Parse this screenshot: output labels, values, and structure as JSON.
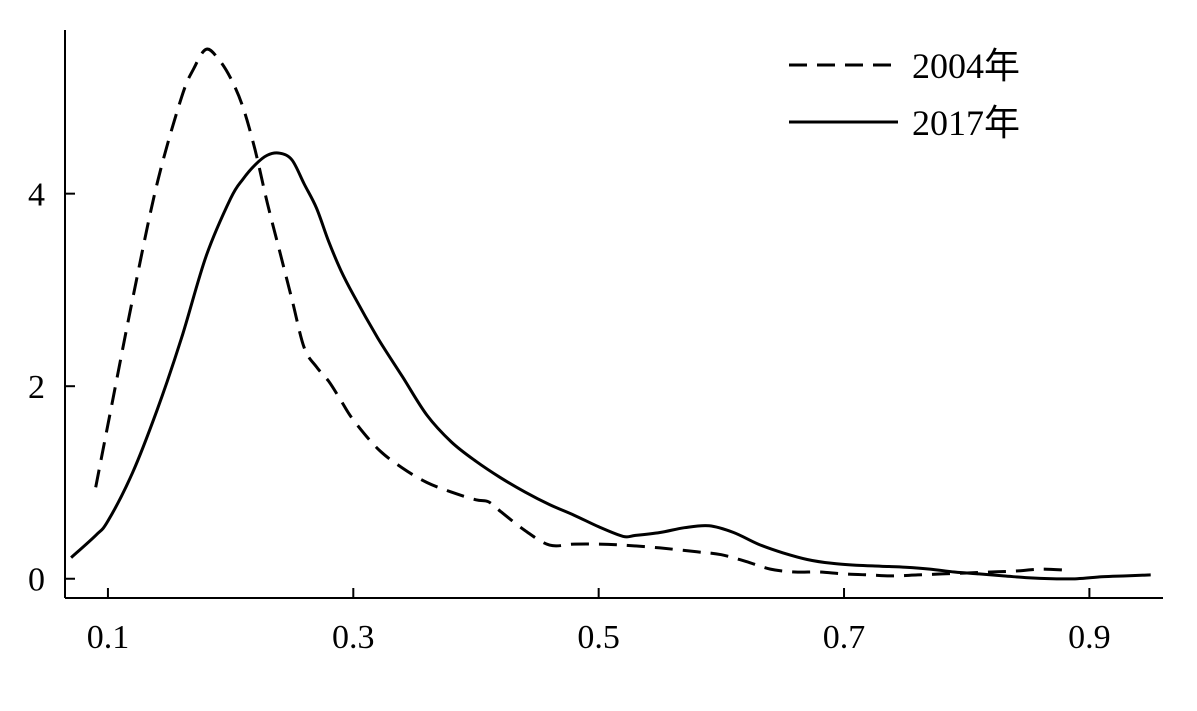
{
  "chart_data": {
    "type": "line",
    "title": "",
    "xlabel": "",
    "ylabel": "",
    "xlim": [
      0.065,
      0.96
    ],
    "ylim": [
      -0.2,
      5.7
    ],
    "x_ticks": [
      0.1,
      0.3,
      0.5,
      0.7,
      0.9
    ],
    "x_tick_labels": [
      "0.1",
      "0.3",
      "0.5",
      "0.7",
      "0.9"
    ],
    "y_ticks": [
      0,
      2,
      4
    ],
    "y_tick_labels": [
      "0",
      "2",
      "4"
    ],
    "grid": false,
    "legend_position": "top-right",
    "series": [
      {
        "name": "2004年",
        "line_style": "dashed",
        "color": "#000000",
        "x": [
          0.09,
          0.1,
          0.12,
          0.14,
          0.16,
          0.17,
          0.18,
          0.19,
          0.2,
          0.21,
          0.22,
          0.23,
          0.24,
          0.25,
          0.26,
          0.27,
          0.28,
          0.29,
          0.3,
          0.32,
          0.34,
          0.36,
          0.38,
          0.4,
          0.41,
          0.42,
          0.44,
          0.46,
          0.48,
          0.5,
          0.52,
          0.55,
          0.58,
          0.6,
          0.62,
          0.64,
          0.66,
          0.68,
          0.7,
          0.72,
          0.74,
          0.76,
          0.78,
          0.8,
          0.82,
          0.84,
          0.86,
          0.88
        ],
        "y": [
          0.95,
          1.6,
          2.9,
          4.1,
          5.0,
          5.3,
          5.5,
          5.4,
          5.2,
          4.9,
          4.45,
          3.9,
          3.4,
          2.9,
          2.4,
          2.2,
          2.05,
          1.85,
          1.65,
          1.35,
          1.15,
          1.0,
          0.9,
          0.82,
          0.8,
          0.7,
          0.5,
          0.35,
          0.36,
          0.36,
          0.35,
          0.32,
          0.28,
          0.25,
          0.18,
          0.1,
          0.07,
          0.07,
          0.05,
          0.04,
          0.03,
          0.04,
          0.05,
          0.06,
          0.07,
          0.08,
          0.1,
          0.09
        ]
      },
      {
        "name": "2017年",
        "line_style": "solid",
        "color": "#000000",
        "x": [
          0.07,
          0.09,
          0.1,
          0.12,
          0.14,
          0.16,
          0.18,
          0.2,
          0.21,
          0.22,
          0.23,
          0.24,
          0.25,
          0.26,
          0.27,
          0.28,
          0.29,
          0.3,
          0.32,
          0.34,
          0.36,
          0.38,
          0.4,
          0.42,
          0.44,
          0.46,
          0.48,
          0.5,
          0.52,
          0.53,
          0.55,
          0.57,
          0.59,
          0.61,
          0.63,
          0.65,
          0.67,
          0.69,
          0.71,
          0.73,
          0.75,
          0.77,
          0.79,
          0.81,
          0.83,
          0.85,
          0.87,
          0.89,
          0.91,
          0.93,
          0.95
        ],
        "y": [
          0.22,
          0.45,
          0.6,
          1.1,
          1.75,
          2.5,
          3.35,
          3.95,
          4.15,
          4.3,
          4.4,
          4.42,
          4.35,
          4.1,
          3.85,
          3.5,
          3.2,
          2.95,
          2.5,
          2.1,
          1.7,
          1.42,
          1.22,
          1.05,
          0.9,
          0.77,
          0.66,
          0.54,
          0.44,
          0.45,
          0.48,
          0.53,
          0.55,
          0.48,
          0.36,
          0.27,
          0.2,
          0.16,
          0.14,
          0.13,
          0.12,
          0.1,
          0.07,
          0.05,
          0.03,
          0.01,
          0.0,
          0.0,
          0.02,
          0.03,
          0.04
        ]
      }
    ]
  }
}
